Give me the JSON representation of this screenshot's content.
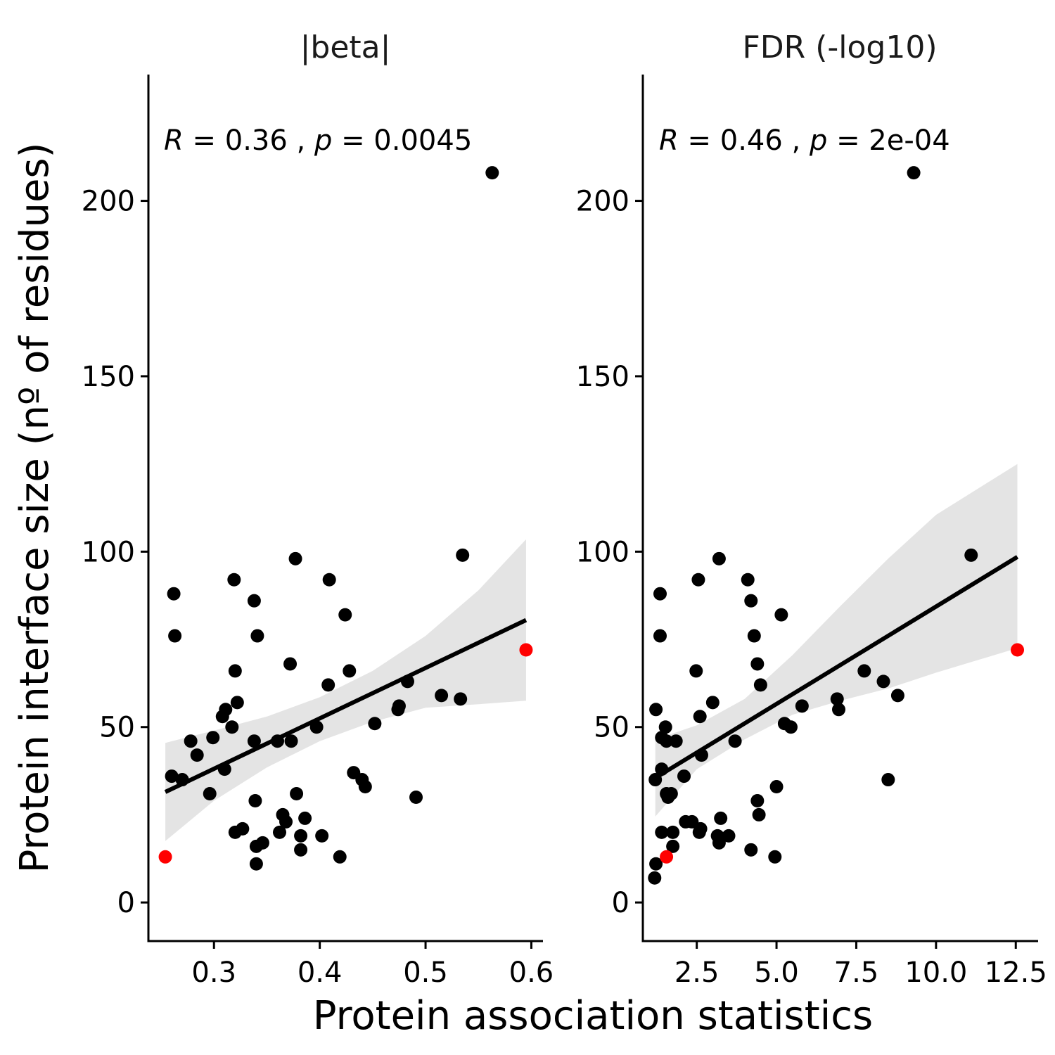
{
  "chart_data": {
    "type": "scatter",
    "ylabel": "Protein interface size (nº of residues)",
    "xlabel": "Protein association statistics",
    "ylim": [
      -11,
      236
    ],
    "yticks": [
      0,
      50,
      100,
      150,
      200
    ],
    "colors": {
      "point": "#000000",
      "highlight": "#ff0000",
      "line": "#000000",
      "band": "#d9d9d9"
    },
    "panels": [
      {
        "title": "|beta|",
        "xlim": [
          0.238,
          0.611
        ],
        "xticks": [
          0.3,
          0.4,
          0.5,
          0.6
        ],
        "xticklabels": [
          "0.3",
          "0.4",
          "0.5",
          "0.6"
        ],
        "annotation": {
          "r_label": "R",
          "r_value": "= 0.36",
          "sep": ",",
          "p_label": "p",
          "p_value": "= 0.0045"
        },
        "points": [
          [
            0.262,
            88
          ],
          [
            0.263,
            76
          ],
          [
            0.26,
            36
          ],
          [
            0.27,
            35
          ],
          [
            0.278,
            46
          ],
          [
            0.284,
            42
          ],
          [
            0.296,
            31
          ],
          [
            0.299,
            47
          ],
          [
            0.31,
            38
          ],
          [
            0.308,
            53
          ],
          [
            0.311,
            55
          ],
          [
            0.317,
            50
          ],
          [
            0.319,
            92
          ],
          [
            0.32,
            66
          ],
          [
            0.322,
            57
          ],
          [
            0.32,
            20
          ],
          [
            0.327,
            21
          ],
          [
            0.338,
            86
          ],
          [
            0.341,
            76
          ],
          [
            0.338,
            46
          ],
          [
            0.339,
            29
          ],
          [
            0.34,
            16
          ],
          [
            0.34,
            11
          ],
          [
            0.346,
            17
          ],
          [
            0.36,
            46
          ],
          [
            0.362,
            20
          ],
          [
            0.365,
            25
          ],
          [
            0.368,
            23
          ],
          [
            0.372,
            68
          ],
          [
            0.373,
            46
          ],
          [
            0.377,
            98
          ],
          [
            0.378,
            31
          ],
          [
            0.382,
            19
          ],
          [
            0.382,
            15
          ],
          [
            0.386,
            24
          ],
          [
            0.397,
            50
          ],
          [
            0.402,
            19
          ],
          [
            0.408,
            62
          ],
          [
            0.409,
            92
          ],
          [
            0.419,
            13
          ],
          [
            0.424,
            82
          ],
          [
            0.428,
            66
          ],
          [
            0.432,
            37
          ],
          [
            0.44,
            35
          ],
          [
            0.443,
            33
          ],
          [
            0.452,
            51
          ],
          [
            0.474,
            55
          ],
          [
            0.475,
            56
          ],
          [
            0.483,
            63
          ],
          [
            0.491,
            30
          ],
          [
            0.515,
            59
          ],
          [
            0.533,
            58
          ],
          [
            0.535,
            99
          ],
          [
            0.563,
            208
          ]
        ],
        "highlight_points": [
          [
            0.254,
            13
          ],
          [
            0.595,
            72
          ]
        ],
        "fit": {
          "x0": 0.254,
          "y0": 31.5,
          "x1": 0.595,
          "y1": 80.5
        },
        "band": [
          [
            0.254,
            17.5,
            45.5
          ],
          [
            0.3,
            29,
            49
          ],
          [
            0.35,
            38.5,
            53
          ],
          [
            0.4,
            46,
            58.5
          ],
          [
            0.45,
            51.5,
            66
          ],
          [
            0.5,
            55.5,
            76
          ],
          [
            0.55,
            56.5,
            89
          ],
          [
            0.595,
            57.5,
            103.5
          ]
        ]
      },
      {
        "title": "FDR (-log10)",
        "xlim": [
          0.81,
          13.2
        ],
        "xticks": [
          2.5,
          5.0,
          7.5,
          10.0,
          12.5
        ],
        "xticklabels": [
          "2.5",
          "5.0",
          "7.5",
          "10.0",
          "12.5"
        ],
        "annotation": {
          "r_label": "R",
          "r_value": "= 0.46",
          "sep": ",",
          "p_label": "p",
          "p_value": "= 2e-04"
        },
        "points": [
          [
            1.18,
            7
          ],
          [
            1.22,
            11
          ],
          [
            1.2,
            35
          ],
          [
            1.22,
            55
          ],
          [
            1.35,
            88
          ],
          [
            1.35,
            76
          ],
          [
            1.4,
            47
          ],
          [
            1.4,
            38
          ],
          [
            1.4,
            20
          ],
          [
            1.52,
            50
          ],
          [
            1.55,
            46
          ],
          [
            1.55,
            31
          ],
          [
            1.6,
            30
          ],
          [
            1.7,
            31
          ],
          [
            1.75,
            20
          ],
          [
            1.75,
            16
          ],
          [
            1.85,
            46
          ],
          [
            2.1,
            36
          ],
          [
            2.15,
            23
          ],
          [
            2.35,
            23
          ],
          [
            2.48,
            66
          ],
          [
            2.55,
            92
          ],
          [
            2.58,
            20
          ],
          [
            2.62,
            21
          ],
          [
            2.6,
            53
          ],
          [
            2.65,
            42
          ],
          [
            3.0,
            57
          ],
          [
            3.2,
            98
          ],
          [
            3.25,
            24
          ],
          [
            3.15,
            19
          ],
          [
            3.2,
            17
          ],
          [
            3.5,
            19
          ],
          [
            3.7,
            46
          ],
          [
            4.1,
            92
          ],
          [
            4.2,
            86
          ],
          [
            4.3,
            76
          ],
          [
            4.2,
            15
          ],
          [
            4.4,
            68
          ],
          [
            4.5,
            62
          ],
          [
            4.4,
            29
          ],
          [
            4.45,
            25
          ],
          [
            4.95,
            13
          ],
          [
            5.0,
            33
          ],
          [
            5.15,
            82
          ],
          [
            5.25,
            51
          ],
          [
            5.45,
            50
          ],
          [
            5.8,
            56
          ],
          [
            6.9,
            58
          ],
          [
            6.95,
            55
          ],
          [
            7.75,
            66
          ],
          [
            8.35,
            63
          ],
          [
            8.5,
            35
          ],
          [
            8.8,
            59
          ],
          [
            9.3,
            208
          ],
          [
            11.1,
            99
          ]
        ],
        "highlight_points": [
          [
            1.55,
            13
          ],
          [
            12.55,
            72
          ]
        ],
        "fit": {
          "x0": 1.2,
          "y0": 35.5,
          "x1": 12.55,
          "y1": 98.5
        },
        "band": [
          [
            1.2,
            24.5,
            46.5
          ],
          [
            2.5,
            38,
            50.5
          ],
          [
            4.0,
            46.5,
            58
          ],
          [
            5.5,
            53.5,
            70.5
          ],
          [
            7.0,
            57.5,
            84.5
          ],
          [
            8.5,
            61,
            98
          ],
          [
            10.0,
            65.5,
            110.5
          ],
          [
            12.55,
            72.5,
            125
          ]
        ]
      }
    ]
  }
}
